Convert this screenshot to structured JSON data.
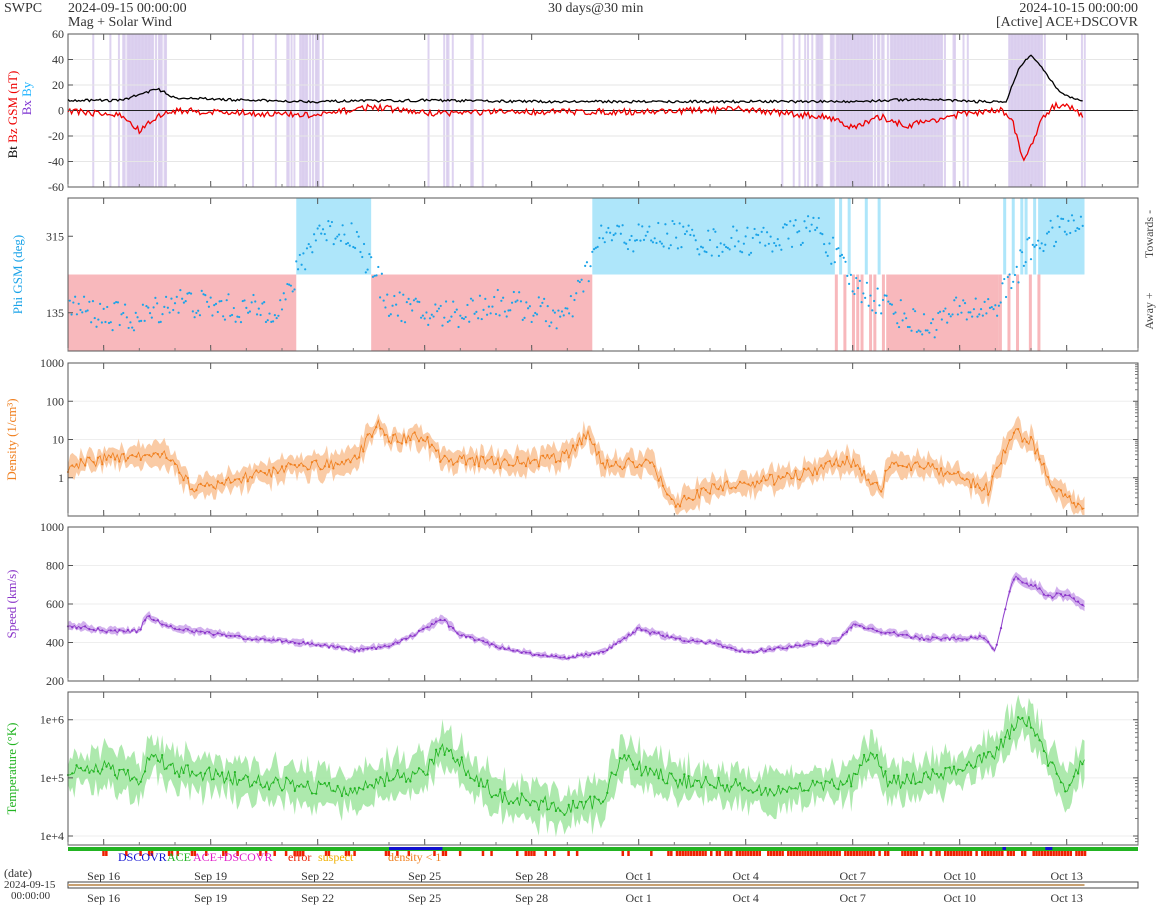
{
  "header": {
    "brand": "SWPC",
    "start_time": "2024-09-15 00:00:00",
    "subtitle": "Mag + Solar Wind",
    "span": "30 days@30 min",
    "end_time": "2024-10-15 00:00:00",
    "source": "[Active] ACE+DSCOVR"
  },
  "colors": {
    "bt": "#000000",
    "bz": "#ee0000",
    "by": "#1eb4ff",
    "bx": "#7b2fd0",
    "phi_points": "#1aa3e8",
    "phi_towards_fill": "#aee6fa",
    "phi_away_fill": "#f8b8bc",
    "density": "#f08020",
    "density_fill": "#f9c295",
    "speed": "#8a35c9",
    "speed_fill": "#caa2ea",
    "temperature": "#22b422",
    "temperature_fill": "#9fe59f",
    "neg_bz_shade": "#d6c8ec",
    "status_dscovr": "#1010d0",
    "status_ace": "#22b422",
    "status_ace_dscovr": "#e01cc8",
    "status_error": "#ee2000",
    "status_suspect": "#f0b000",
    "status_density": "#f08020"
  },
  "x_axis": {
    "tick_labels": [
      "Sep 16",
      "Sep 19",
      "Sep 22",
      "Sep 25",
      "Sep 28",
      "Oct 1",
      "Oct 4",
      "Oct 7",
      "Oct 10",
      "Oct 13"
    ],
    "tick_days": [
      1,
      4,
      7,
      10,
      13,
      16,
      19,
      22,
      25,
      28
    ],
    "date_label": "(date)",
    "start_date": "2024-09-15",
    "start_clock": "00:00:00"
  },
  "legend": {
    "dscovr": "DSCOVR",
    "ace": "ACE",
    "ace_dscovr": "ACE+DSCOVR",
    "error": "error",
    "suspect": "suspect",
    "density": "density < 1"
  },
  "chart_data": [
    {
      "type": "line",
      "panel": "magnetic field",
      "x_unit": "days since 2024-09-15 00:00",
      "ylabel_parts": [
        "Bt",
        "Bz GSM (nT)",
        "Bx",
        "By"
      ],
      "ylim": [
        -60,
        60
      ],
      "yticks": [
        -60,
        -40,
        -20,
        0,
        20,
        40,
        60
      ],
      "series": [
        {
          "name": "Bt",
          "x": [
            0,
            1.5,
            2.5,
            3,
            5,
            7,
            10,
            13,
            16,
            19,
            22,
            24,
            25.5,
            26.3,
            26.7,
            27,
            27.4,
            27.8,
            28.2,
            28.5
          ],
          "values": [
            8,
            8,
            17,
            10,
            8,
            7,
            8,
            7,
            7,
            7,
            7,
            9,
            7,
            7,
            35,
            43,
            30,
            14,
            10,
            6
          ]
        },
        {
          "name": "Bz GSM",
          "x": [
            0,
            1.5,
            2,
            2.5,
            3,
            5,
            7,
            8.5,
            10,
            13,
            16,
            19,
            21.5,
            22,
            22.8,
            23.5,
            25,
            26.2,
            26.5,
            26.8,
            27,
            27.3,
            27.6,
            28,
            28.5
          ],
          "values": [
            0,
            -4,
            -16,
            -5,
            0,
            -2,
            -4,
            3,
            -2,
            -1,
            -1,
            1,
            -6,
            -14,
            -5,
            -12,
            -3,
            0,
            -10,
            -40,
            -28,
            -8,
            3,
            5,
            -5
          ]
        }
      ]
    },
    {
      "type": "scatter",
      "panel": "phi",
      "ylabel": "Phi GSM (deg)",
      "ylim": [
        45,
        405
      ],
      "yticks": [
        135,
        315
      ],
      "side_labels": [
        "Towards -",
        "Away +"
      ],
      "sectors": [
        {
          "start": 0,
          "end": 6.4,
          "sector": "away"
        },
        {
          "start": 6.4,
          "end": 8.5,
          "sector": "towards"
        },
        {
          "start": 8.5,
          "end": 14.7,
          "sector": "away"
        },
        {
          "start": 14.7,
          "end": 21.5,
          "sector": "towards"
        },
        {
          "start": 21.5,
          "end": 23,
          "sector": "mixed"
        },
        {
          "start": 23,
          "end": 26.1,
          "sector": "away"
        },
        {
          "start": 26.1,
          "end": 27.2,
          "sector": "mixed"
        },
        {
          "start": 27.2,
          "end": 28.5,
          "sector": "towards"
        }
      ],
      "x": [
        0,
        1,
        2,
        3,
        4,
        5,
        6,
        7,
        8,
        9,
        10,
        11,
        12,
        13,
        14,
        15,
        16,
        17,
        18,
        19,
        20,
        21,
        22,
        23,
        24,
        25,
        26,
        27,
        28
      ],
      "values": [
        150,
        130,
        120,
        165,
        150,
        140,
        150,
        330,
        320,
        160,
        130,
        135,
        160,
        145,
        120,
        320,
        310,
        320,
        300,
        305,
        310,
        340,
        200,
        150,
        100,
        140,
        150,
        290,
        340
      ]
    },
    {
      "type": "line",
      "panel": "density",
      "ylabel": "Density (1/cm³)",
      "scale": "log",
      "ylim": [
        0.1,
        1000
      ],
      "yticks": [
        1,
        10,
        100,
        1000
      ],
      "x": [
        0,
        1,
        2,
        2.8,
        3.5,
        5,
        6.4,
        7,
        8,
        8.7,
        9,
        10,
        10.5,
        11,
        12,
        13,
        14,
        14.6,
        15,
        16,
        16.4,
        17,
        18,
        19,
        20,
        21,
        21.5,
        22,
        22.8,
        23,
        24,
        25,
        25.8,
        26.5,
        27,
        27.5,
        28,
        28.5
      ],
      "values": [
        2,
        3,
        4,
        4,
        0.5,
        1,
        2,
        2.2,
        2.5,
        30,
        10,
        12,
        3,
        3,
        2.5,
        2.5,
        4,
        15,
        2,
        2.5,
        2.2,
        0.2,
        0.5,
        0.7,
        1,
        1.5,
        2.5,
        2.5,
        0.5,
        2,
        2,
        1,
        0.5,
        15,
        10,
        1,
        0.3,
        0.15
      ]
    },
    {
      "type": "line",
      "panel": "speed",
      "ylabel": "Speed (km/s)",
      "ylim": [
        200,
        1000
      ],
      "yticks": [
        200,
        400,
        600,
        800,
        1000
      ],
      "x": [
        0,
        1,
        2,
        2.2,
        3,
        4,
        5,
        6,
        7,
        8,
        9,
        10,
        10.5,
        11,
        12,
        13,
        14,
        15,
        16,
        17,
        18,
        19,
        20,
        21,
        21.5,
        22,
        23,
        24,
        25,
        25.7,
        26,
        26.5,
        27,
        27.5,
        28,
        28.5
      ],
      "values": [
        490,
        460,
        460,
        540,
        470,
        450,
        420,
        410,
        390,
        360,
        380,
        470,
        520,
        440,
        380,
        340,
        320,
        350,
        470,
        420,
        400,
        350,
        370,
        400,
        400,
        490,
        450,
        420,
        420,
        430,
        350,
        740,
        700,
        640,
        650,
        580
      ]
    },
    {
      "type": "line",
      "panel": "temperature",
      "ylabel": "Temperature (°K)",
      "scale": "log",
      "ylim": [
        7000,
        3000000
      ],
      "yticks": [
        "1e+4",
        "1e+5",
        "1e+6"
      ],
      "x": [
        0,
        1,
        2,
        2.3,
        3,
        5,
        7,
        8,
        9,
        10,
        10.5,
        11,
        12,
        13,
        14,
        15,
        15.5,
        16,
        17,
        18,
        19,
        20,
        21,
        22,
        22.5,
        23,
        24,
        25,
        26,
        26.7,
        27,
        27.5,
        28,
        28.5
      ],
      "values": [
        120000,
        150000,
        90000,
        250000,
        140000,
        90000,
        70000,
        60000,
        100000,
        120000,
        350000,
        180000,
        50000,
        40000,
        30000,
        40000,
        250000,
        150000,
        90000,
        80000,
        70000,
        60000,
        70000,
        90000,
        300000,
        80000,
        100000,
        150000,
        250000,
        1200000,
        800000,
        200000,
        60000,
        200000
      ]
    }
  ]
}
